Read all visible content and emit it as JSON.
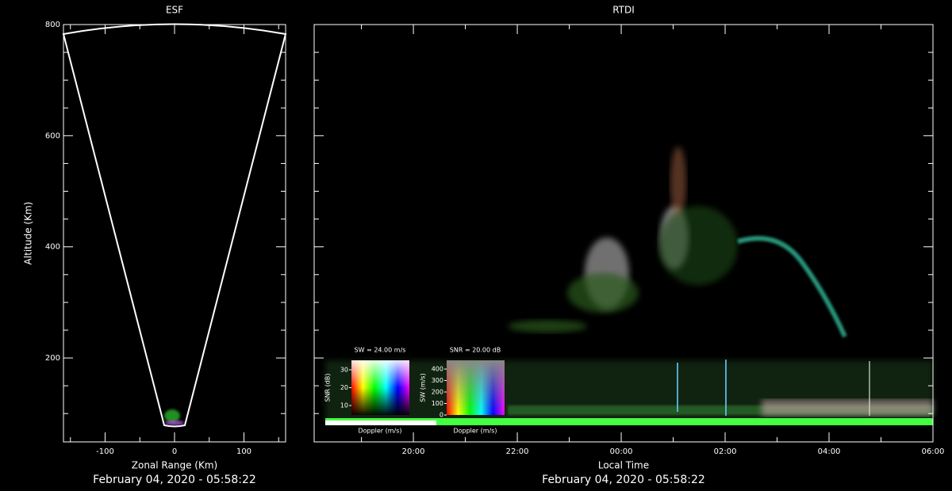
{
  "chart_data": [
    {
      "type": "fan",
      "title": "ESF",
      "xlabel": "Zonal Range (Km)",
      "ylabel": "Altitude (Km)",
      "xlim": [
        -160,
        160
      ],
      "xticks": [
        -100,
        0,
        100
      ],
      "xminorticks": [
        -150,
        -50,
        50,
        150
      ],
      "ylim": [
        49,
        800
      ],
      "yticks": [
        200,
        400,
        600,
        800
      ],
      "yminorticks": [
        100,
        150,
        250,
        300,
        350,
        450,
        500,
        550,
        650,
        700,
        750
      ],
      "footer": "February 04, 2020 - 05:58:22"
    },
    {
      "type": "image",
      "title": "RTDI",
      "xlabel": "Local Time",
      "xlim": [
        18.09,
        30
      ],
      "xticks": [
        {
          "value": 20,
          "label": "20:00"
        },
        {
          "value": 22,
          "label": "22:00"
        },
        {
          "value": 24,
          "label": "00:00"
        },
        {
          "value": 26,
          "label": "02:00"
        },
        {
          "value": 28,
          "label": "04:00"
        },
        {
          "value": 30,
          "label": "06:00"
        }
      ],
      "xminorticks": [
        19,
        21,
        23,
        25,
        27,
        29
      ],
      "ylim": [
        49,
        800
      ],
      "yticks": [
        200,
        400,
        600,
        800
      ],
      "yminorticks": [
        100,
        150,
        250,
        300,
        350,
        450,
        500,
        550,
        650,
        700,
        750
      ],
      "footer": "February 04, 2020 - 05:58:22",
      "insets": [
        {
          "title": "SW = 24.00 m/s",
          "ylabel": "SNR (dB)",
          "xlabel": "Doppler (m/s)",
          "ylim": [
            4.7,
            35.3
          ],
          "yticks": [
            10,
            20,
            30
          ]
        },
        {
          "title": "SNR = 20.00 dB",
          "ylabel": "SW (m/s)",
          "xlabel": "Doppler (m/s)",
          "ylim": [
            0,
            476
          ],
          "yticks": [
            0,
            100,
            200,
            300,
            400
          ]
        }
      ]
    }
  ]
}
